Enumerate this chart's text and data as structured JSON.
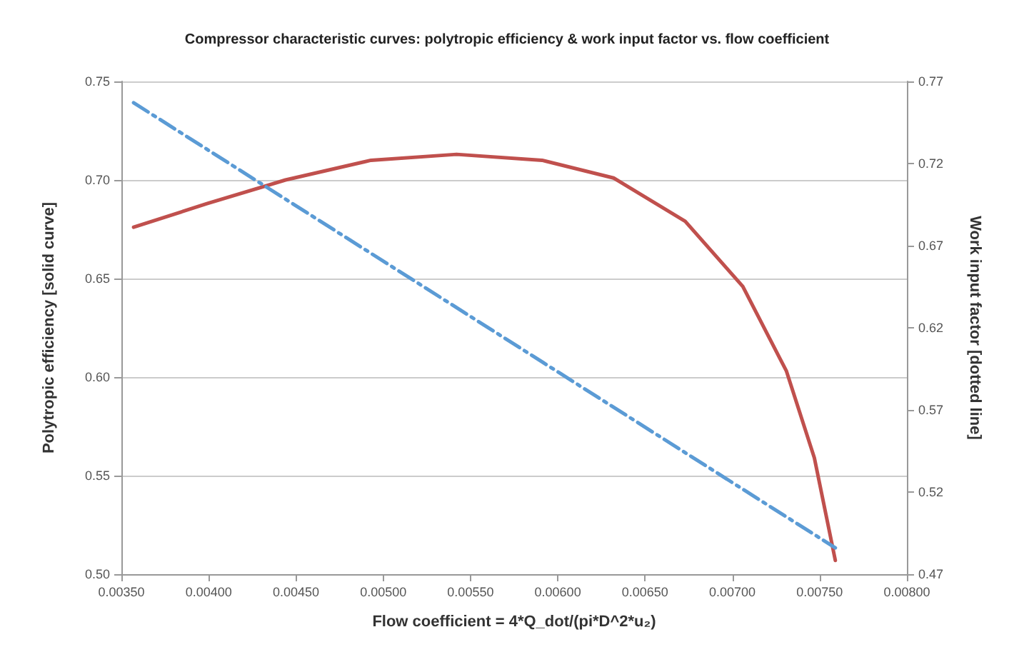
{
  "chart_data": {
    "type": "line",
    "title": "Compressor characteristic curves: polytropic efficiency & work input factor vs. flow coefficient",
    "xlabel": "Flow coefficient = 4*Q_dot/(pi*D^2*u₂)",
    "ylabel": "Polytropic efficiency [solid curve]",
    "y2label": "Work input factor [dotted line]",
    "xlim": [
      0.0035,
      0.008
    ],
    "xticks": [
      {
        "value": 0.0035,
        "label": "0.00350"
      },
      {
        "value": 0.004,
        "label": "0.00400"
      },
      {
        "value": 0.0045,
        "label": "0.00450"
      },
      {
        "value": 0.005,
        "label": "0.00500"
      },
      {
        "value": 0.0055,
        "label": "0.00550"
      },
      {
        "value": 0.006,
        "label": "0.00600"
      },
      {
        "value": 0.0065,
        "label": "0.00650"
      },
      {
        "value": 0.007,
        "label": "0.00700"
      },
      {
        "value": 0.0075,
        "label": "0.00750"
      },
      {
        "value": 0.008,
        "label": "0.00800"
      }
    ],
    "ylim": [
      0.5,
      0.75
    ],
    "yticks": [
      {
        "value": 0.5,
        "label": "0.50"
      },
      {
        "value": 0.55,
        "label": "0.55"
      },
      {
        "value": 0.6,
        "label": "0.60"
      },
      {
        "value": 0.65,
        "label": "0.65"
      },
      {
        "value": 0.7,
        "label": "0.70"
      },
      {
        "value": 0.75,
        "label": "0.75"
      }
    ],
    "y2lim": [
      0.47,
      0.77
    ],
    "y2ticks": [
      0.47,
      0.52,
      0.57,
      0.62,
      0.67,
      0.72,
      0.77
    ],
    "grid": "y",
    "marker": "none",
    "series": [
      {
        "color": "#c0504d",
        "line_style": "solid",
        "x": [
          0.00357,
          0.00399,
          0.00444,
          0.00493,
          0.00542,
          0.00591,
          0.00632,
          0.00673,
          0.00706,
          0.00731,
          0.00747,
          0.00759
        ],
        "values": [
          0.676,
          0.688,
          0.7,
          0.71,
          0.713,
          0.71,
          0.701,
          0.679,
          0.646,
          0.603,
          0.559,
          0.507
        ]
      },
      {
        "color": "#5b9bd5",
        "line_style": "dashed",
        "axis": "y2",
        "x": [
          0.00357,
          0.00759
        ],
        "values": [
          0.757,
          0.486
        ]
      }
    ]
  }
}
